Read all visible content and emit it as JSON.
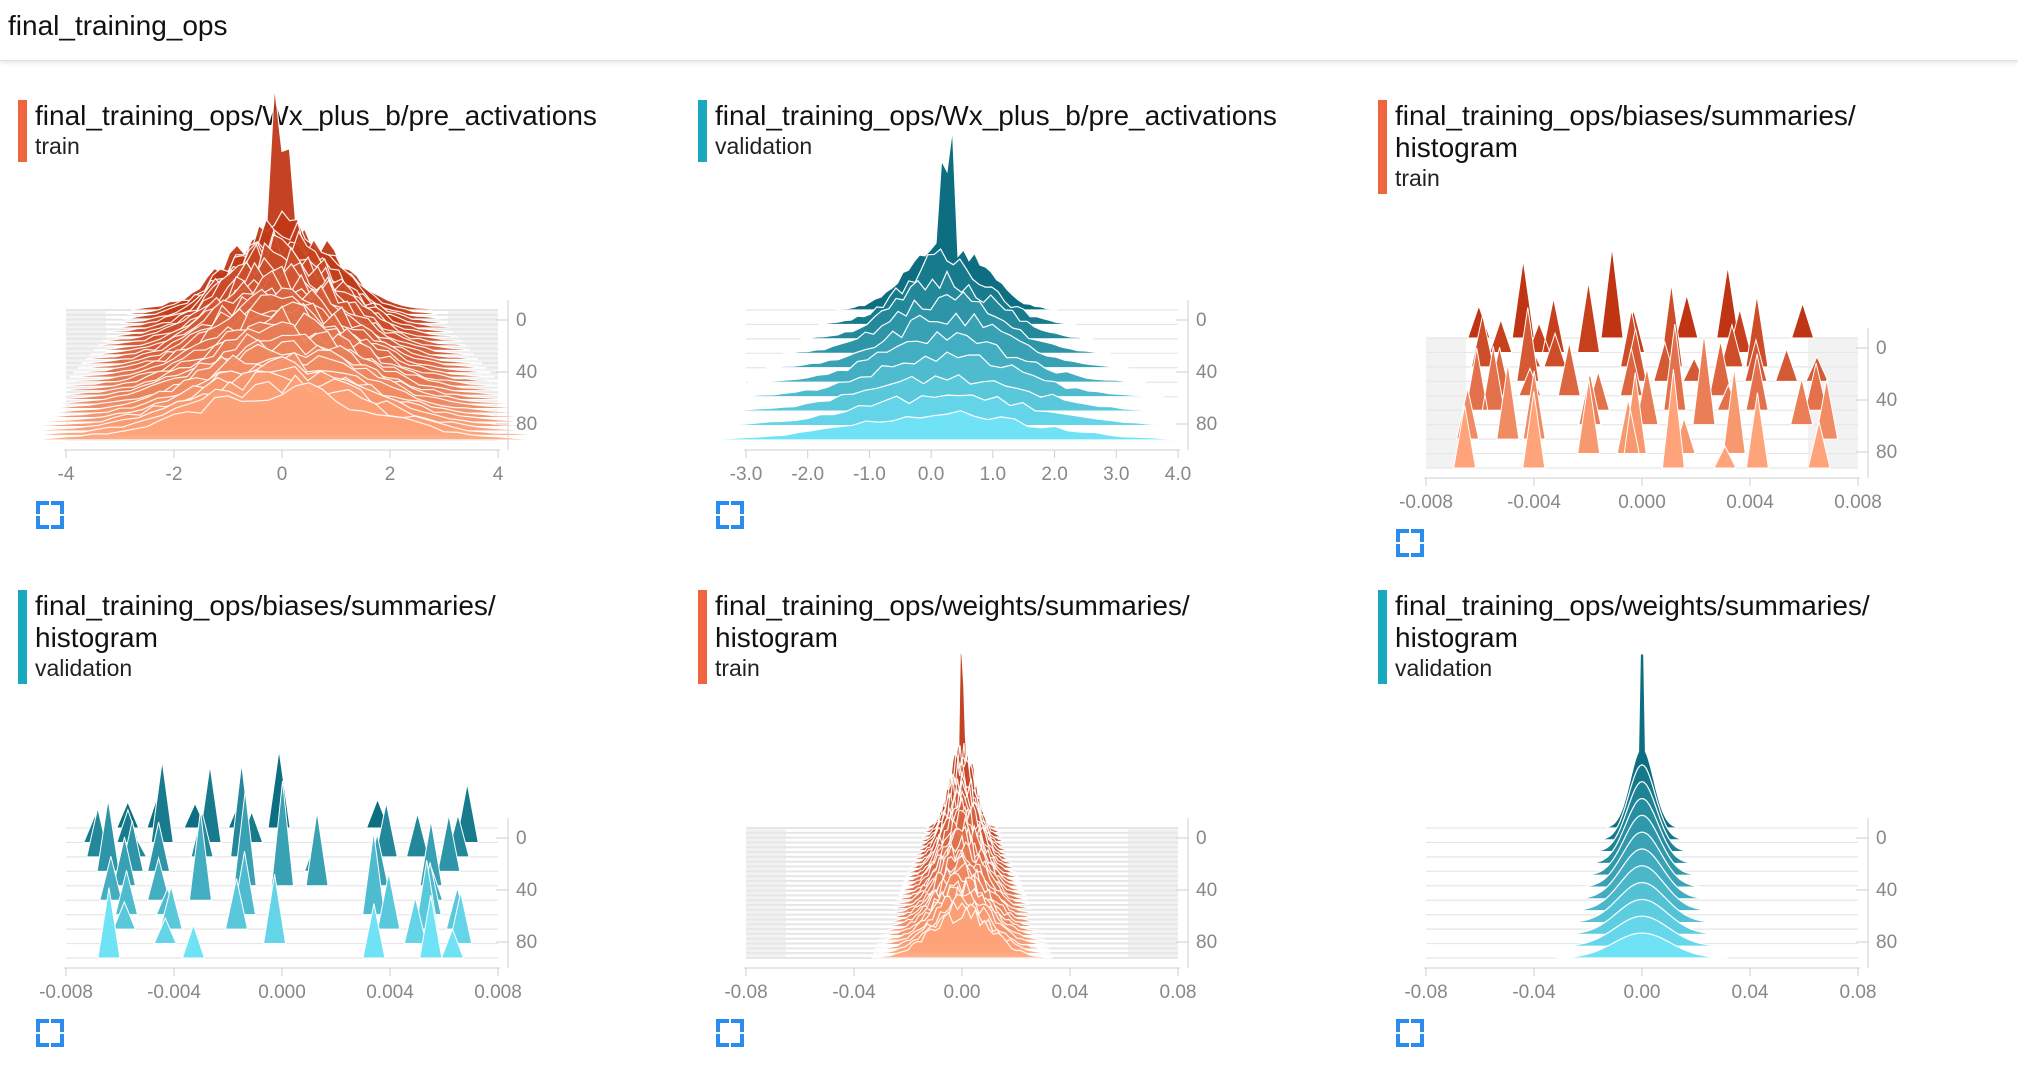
{
  "header": {
    "title": "final_training_ops"
  },
  "colors": {
    "train_stripe": "#f0653d",
    "validation_stripe": "#19a9bf",
    "train_dark": "#bf3412",
    "train_light": "#ffa47a",
    "validation_dark": "#0c6e80",
    "validation_light": "#6fe2f5",
    "expand_icon": "#2b8cf0"
  },
  "cards": [
    {
      "title": "final_training_ops/Wx_plus_b/pre_activations",
      "run": "train",
      "series": "train",
      "style": "dense",
      "x_ticks": [
        "-4",
        "-2",
        "0",
        "2",
        "4"
      ],
      "y_ticks": [
        "0",
        "40",
        "80"
      ]
    },
    {
      "title": "final_training_ops/Wx_plus_b/pre_activations",
      "run": "validation",
      "series": "validation",
      "style": "sparse",
      "x_ticks": [
        "-3.0",
        "-2.0",
        "-1.0",
        "0.0",
        "1.0",
        "2.0",
        "3.0",
        "4.0"
      ],
      "y_ticks": [
        "0",
        "40",
        "80"
      ]
    },
    {
      "title": "final_training_ops/biases/summaries/\nhistogram",
      "run": "train",
      "series": "train",
      "style": "spikes",
      "x_ticks": [
        "-0.008",
        "-0.004",
        "0.000",
        "0.004",
        "0.008"
      ],
      "y_ticks": [
        "0",
        "40",
        "80"
      ]
    },
    {
      "title": "final_training_ops/biases/summaries/\nhistogram",
      "run": "validation",
      "series": "validation",
      "style": "spikes",
      "x_ticks": [
        "-0.008",
        "-0.004",
        "0.000",
        "0.004",
        "0.008"
      ],
      "y_ticks": [
        "0",
        "40",
        "80"
      ]
    },
    {
      "title": "final_training_ops/weights/summaries/\nhistogram",
      "run": "train",
      "series": "train",
      "style": "narrow",
      "x_ticks": [
        "-0.08",
        "-0.04",
        "0.00",
        "0.04",
        "0.08"
      ],
      "y_ticks": [
        "0",
        "40",
        "80"
      ]
    },
    {
      "title": "final_training_ops/weights/summaries/\nhistogram",
      "run": "validation",
      "series": "validation",
      "style": "narrow-smooth",
      "x_ticks": [
        "-0.08",
        "-0.04",
        "0.00",
        "0.04",
        "0.08"
      ],
      "y_ticks": [
        "0",
        "40",
        "80"
      ]
    }
  ]
}
